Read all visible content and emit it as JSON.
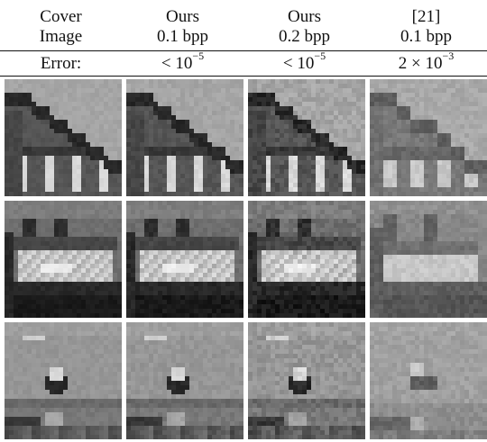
{
  "columns": [
    {
      "line1": "Cover",
      "line2": "Image",
      "error_text": "Error:",
      "error_exp": ""
    },
    {
      "line1": "Ours",
      "line2": "0.1 bpp",
      "error_text": "< 10",
      "error_exp": "−5"
    },
    {
      "line1": "Ours",
      "line2": "0.2 bpp",
      "error_text": "< 10",
      "error_exp": "−5"
    },
    {
      "line1": "[21]",
      "line2": "0.1 bpp",
      "error_text": "2 × 10",
      "error_exp": "−3"
    }
  ],
  "rows": [
    {
      "scene": "rooftop"
    },
    {
      "scene": "boat"
    },
    {
      "scene": "bird-over-sea"
    }
  ]
}
